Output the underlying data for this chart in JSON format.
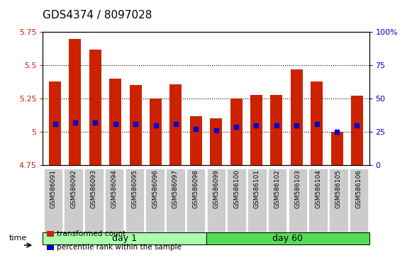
{
  "title": "GDS4374 / 8097028",
  "samples": [
    "GSM586091",
    "GSM586092",
    "GSM586093",
    "GSM586094",
    "GSM586095",
    "GSM586096",
    "GSM586097",
    "GSM586098",
    "GSM586099",
    "GSM586100",
    "GSM586101",
    "GSM586102",
    "GSM586103",
    "GSM586104",
    "GSM586105",
    "GSM586106"
  ],
  "bar_tops": [
    5.38,
    5.7,
    5.62,
    5.4,
    5.35,
    5.25,
    5.36,
    5.12,
    5.1,
    5.25,
    5.28,
    5.28,
    5.47,
    5.38,
    5.0,
    5.27
  ],
  "blue_dots": [
    5.06,
    5.07,
    5.07,
    5.06,
    5.06,
    5.05,
    5.06,
    5.02,
    5.01,
    5.04,
    5.05,
    5.05,
    5.05,
    5.06,
    5.0,
    5.05
  ],
  "bar_bottom": 4.75,
  "ylim_left": [
    4.75,
    5.75
  ],
  "ylim_right": [
    0,
    100
  ],
  "yticks_left": [
    4.75,
    5.0,
    5.25,
    5.5,
    5.75
  ],
  "ytick_labels_left": [
    "4.75",
    "5",
    "5.25",
    "5.5",
    "5.75"
  ],
  "yticks_right": [
    0,
    25,
    50,
    75,
    100
  ],
  "ytick_labels_right": [
    "0",
    "25",
    "50",
    "75",
    "100%"
  ],
  "groups": [
    {
      "label": "day 1",
      "start": 0,
      "end": 8
    },
    {
      "label": "day 60",
      "start": 8,
      "end": 16
    }
  ],
  "bar_color": "#cc2200",
  "dot_color": "#0000cc",
  "group_colors": [
    "#aaffaa",
    "#55dd55"
  ],
  "bg_color": "#ffffff",
  "tick_label_bg": "#cccccc",
  "legend_items": [
    {
      "color": "#cc2200",
      "label": "transformed count"
    },
    {
      "color": "#0000cc",
      "label": "percentile rank within the sample"
    }
  ],
  "title_fontsize": 11,
  "bar_width": 0.6
}
